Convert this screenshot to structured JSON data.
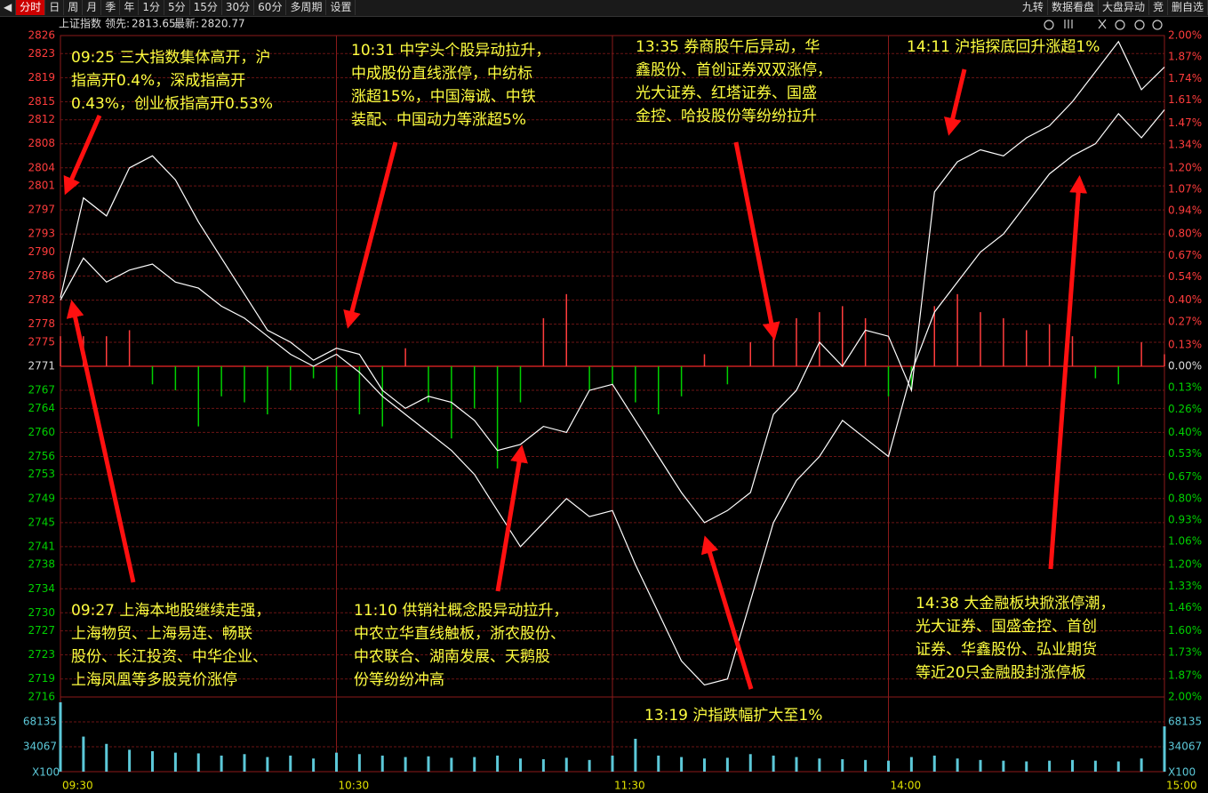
{
  "toolbar": {
    "left": [
      "分时",
      "日",
      "周",
      "月",
      "季",
      "年",
      "1分",
      "5分",
      "15分",
      "30分",
      "60分",
      "多周期",
      "设置"
    ],
    "right": [
      "九转",
      "数据看盘",
      "大盘异动",
      "竞",
      "删自选"
    ]
  },
  "chart_data": {
    "type": "line",
    "title": "上证指数",
    "x": [
      "09:30",
      "09:35",
      "09:40",
      "09:45",
      "09:50",
      "09:55",
      "10:00",
      "10:05",
      "10:10",
      "10:15",
      "10:20",
      "10:25",
      "10:30",
      "10:35",
      "10:40",
      "10:45",
      "10:50",
      "10:55",
      "11:00",
      "11:05",
      "11:10",
      "11:15",
      "11:20",
      "11:25",
      "11:30",
      "13:05",
      "13:10",
      "13:15",
      "13:20",
      "13:25",
      "13:30",
      "13:35",
      "13:40",
      "13:45",
      "13:50",
      "13:55",
      "14:00",
      "14:05",
      "14:10",
      "14:15",
      "14:20",
      "14:25",
      "14:30",
      "14:35",
      "14:40",
      "14:45",
      "14:50",
      "14:55",
      "15:00"
    ],
    "series": [
      {
        "name": "领先:",
        "color": "#ffffff",
        "last": 2813.65,
        "values": [
          2782,
          2789,
          2785,
          2787,
          2788,
          2785,
          2784,
          2781,
          2779,
          2776,
          2773,
          2771,
          2773,
          2770,
          2766,
          2763,
          2760,
          2757,
          2753,
          2747,
          2741,
          2745,
          2749,
          2746,
          2747,
          2738,
          2730,
          2722,
          2718,
          2719,
          2732,
          2745,
          2752,
          2756,
          2762,
          2759,
          2756,
          2770,
          2780,
          2785,
          2790,
          2793,
          2798,
          2803,
          2806,
          2808,
          2813,
          2809,
          2813.65
        ]
      },
      {
        "name": "最新:",
        "color": "#ffffff",
        "last": 2820.77,
        "values": [
          2782.4,
          2799,
          2796,
          2804,
          2806,
          2802,
          2795,
          2789,
          2783,
          2777,
          2775,
          2772,
          2774,
          2773,
          2767,
          2764,
          2766,
          2765,
          2762,
          2757,
          2758,
          2761,
          2760,
          2767,
          2768,
          2762,
          2756,
          2750,
          2745,
          2747,
          2750,
          2763,
          2767,
          2775,
          2771,
          2777,
          2776,
          2767,
          2800,
          2805,
          2807,
          2806,
          2809,
          2811,
          2815,
          2820,
          2825,
          2817,
          2820.77
        ]
      }
    ],
    "ylim": [
      2716,
      2826
    ],
    "yticks": [
      2826,
      2823,
      2819,
      2815,
      2812,
      2808,
      2804,
      2801,
      2797,
      2793,
      2790,
      2786,
      2782,
      2778,
      2775,
      2771,
      2767,
      2764,
      2760,
      2756,
      2753,
      2749,
      2745,
      2741,
      2738,
      2734,
      2730,
      2727,
      2723,
      2719,
      2716
    ],
    "y2lim": [
      -2,
      2
    ],
    "y2ticks": [
      {
        "value": 2,
        "label": "2.00%"
      },
      {
        "value": 1.87,
        "label": "1.87%"
      },
      {
        "value": 1.74,
        "label": "1.74%"
      },
      {
        "value": 1.61,
        "label": "1.61%"
      },
      {
        "value": 1.47,
        "label": "1.47%"
      },
      {
        "value": 1.34,
        "label": "1.34%"
      },
      {
        "value": 1.2,
        "label": "1.20%"
      },
      {
        "value": 1.07,
        "label": "1.07%"
      },
      {
        "value": 0.94,
        "label": "0.94%"
      },
      {
        "value": 0.8,
        "label": "0.80%"
      },
      {
        "value": 0.67,
        "label": "0.67%"
      },
      {
        "value": 0.54,
        "label": "0.54%"
      },
      {
        "value": 0.4,
        "label": "0.40%"
      },
      {
        "value": 0.27,
        "label": "0.27%"
      },
      {
        "value": 0.13,
        "label": "0.13%"
      },
      {
        "value": 0,
        "label": "0.00%"
      },
      {
        "value": -0.13,
        "label": "0.13%"
      },
      {
        "value": -0.26,
        "label": "0.26%"
      },
      {
        "value": -0.4,
        "label": "0.40%"
      },
      {
        "value": -0.53,
        "label": "0.53%"
      },
      {
        "value": -0.67,
        "label": "0.67%"
      },
      {
        "value": -0.8,
        "label": "0.80%"
      },
      {
        "value": -0.93,
        "label": "0.93%"
      },
      {
        "value": -1.06,
        "label": "1.06%"
      },
      {
        "value": -1.2,
        "label": "1.20%"
      },
      {
        "value": -1.33,
        "label": "1.33%"
      },
      {
        "value": -1.46,
        "label": "1.46%"
      },
      {
        "value": -1.6,
        "label": "1.60%"
      },
      {
        "value": -1.73,
        "label": "1.73%"
      },
      {
        "value": -1.87,
        "label": "1.87%"
      },
      {
        "value": -2,
        "label": "2.00%"
      }
    ],
    "xticks": [
      "09:30",
      "10:30",
      "11:30",
      "14:00",
      "15:00"
    ],
    "grid": true,
    "flow": {
      "up_color": "#ff3c3c",
      "down_color": "#00d000",
      "values": [
        5,
        5,
        5,
        6,
        -3,
        -4,
        -10,
        -5,
        -6,
        -8,
        -4,
        -2,
        -4,
        -8,
        -10,
        3,
        -6,
        -12,
        -7,
        -17,
        -6,
        8,
        12,
        -4,
        -3,
        -6,
        -8,
        -5,
        2,
        -3,
        4,
        6,
        8,
        9,
        10,
        8,
        -5,
        -4,
        10,
        12,
        9,
        8,
        6,
        7,
        5,
        -2,
        -3,
        4,
        2
      ]
    },
    "volume": {
      "color": "#5cc8d8",
      "unit": "X100",
      "ylim": [
        0,
        102202
      ],
      "yticks": [
        68135,
        34067
      ],
      "values": [
        95000,
        48000,
        38000,
        30000,
        28000,
        26000,
        25000,
        22000,
        24000,
        20000,
        22000,
        18000,
        26000,
        24000,
        22000,
        20000,
        21000,
        19000,
        20000,
        22000,
        18000,
        17000,
        19000,
        16000,
        22000,
        45000,
        22000,
        20000,
        18000,
        19000,
        24000,
        22000,
        20000,
        18000,
        17000,
        16000,
        15000,
        20000,
        22000,
        18000,
        16000,
        15000,
        14000,
        15000,
        16000,
        15000,
        14000,
        18000,
        62000
      ]
    },
    "annotations": [
      {
        "lines": [
          "09:25 三大指数集体高开，沪",
          "指高开0.4%，深成指高开",
          "0.43%，创业板指高开0.53%"
        ]
      },
      {
        "lines": [
          "10:31 中字头个股异动拉升，",
          "中成股份直线涨停，中纺标",
          "涨超15%，中国海诚、中铁",
          "装配、中国动力等涨超5%"
        ]
      },
      {
        "lines": [
          "13:35 券商股午后异动，华",
          "鑫股份、首创证券双双涨停，",
          "光大证券、红塔证券、国盛",
          "金控、哈投股份等纷纷拉升"
        ]
      },
      {
        "lines": [
          "14:11 沪指探底回升涨超1%"
        ]
      },
      {
        "lines": [
          "09:27 上海本地股继续走强，",
          "上海物贸、上海易连、畅联",
          "股份、长江投资、中华企业、",
          "上海凤凰等多股竞价涨停"
        ]
      },
      {
        "lines": [
          "11:10 供销社概念股异动拉升，",
          "中农立华直线触板，浙农股份、",
          "中农联合、湖南发展、天鹅股",
          "份等纷纷冲高"
        ]
      },
      {
        "lines": [
          "13:19 沪指跌幅扩大至1%"
        ]
      },
      {
        "lines": [
          "14:38 大金融板块掀涨停潮，",
          "光大证券、国盛金控、首创",
          "证券、华鑫股份、弘业期货",
          "等近20只金融股封涨停板"
        ]
      }
    ]
  }
}
